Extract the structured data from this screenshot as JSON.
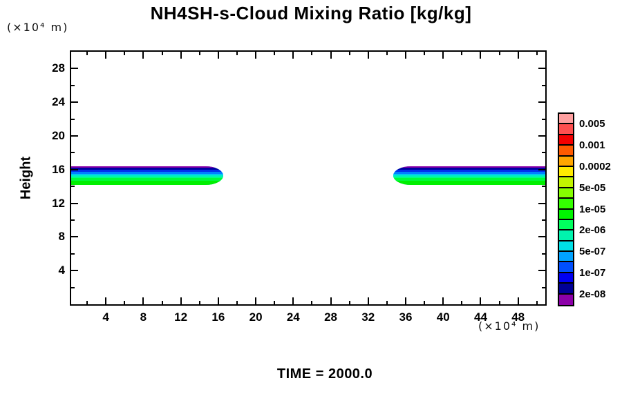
{
  "chart_data": {
    "type": "filled_contour",
    "title": "NH4SH-s-Cloud Mixing Ratio [kg/kg]",
    "ylabel": "Height",
    "y_axis_unit": "(×10⁴ m)",
    "x_axis_unit": "(×10⁴ m)",
    "time_label": "TIME = 2000.0",
    "xlim": [
      0.3,
      50.9
    ],
    "ylim": [
      0,
      30
    ],
    "x_ticks_major": [
      4,
      8,
      12,
      16,
      20,
      24,
      28,
      32,
      36,
      40,
      44,
      48
    ],
    "x_ticks_minor": [
      2,
      6,
      10,
      14,
      18,
      22,
      26,
      30,
      34,
      38,
      42,
      46,
      50
    ],
    "y_ticks_major": [
      4,
      8,
      12,
      16,
      20,
      24,
      28
    ],
    "y_ticks_minor": [
      2,
      6,
      10,
      14,
      18,
      22,
      26,
      30
    ],
    "grid": false,
    "legend_position": "right",
    "colorbar": {
      "labels": [
        "0.005",
        "0.001",
        "0.0002",
        "5e-05",
        "1e-05",
        "2e-06",
        "5e-07",
        "1e-07",
        "2e-08"
      ],
      "colors_top_to_bottom": [
        "#FFA0A0",
        "#FF4F4F",
        "#F30000",
        "#FF5A00",
        "#FFA600",
        "#FFEA00",
        "#C2F400",
        "#86FF00",
        "#34FF00",
        "#00F400",
        "#00FF5E",
        "#00F4AE",
        "#00DFE6",
        "#00A2FF",
        "#004FFF",
        "#0000F2",
        "#000096",
        "#8C00A8"
      ]
    },
    "clouds": [
      {
        "x_start": 0.3,
        "x_end": 16.5,
        "y_bottom": 14.2,
        "y_top": 16.4,
        "tip_side": "right"
      },
      {
        "x_start": 34.7,
        "x_end": 50.9,
        "y_bottom": 14.2,
        "y_top": 16.4,
        "tip_side": "left"
      }
    ],
    "cloud_layers_top_to_bottom": [
      {
        "color": "#8C00A8",
        "px": 2
      },
      {
        "color": "#0000A2",
        "px": 3
      },
      {
        "color": "#0030EE",
        "px": 3
      },
      {
        "color": "#0080FF",
        "px": 3
      },
      {
        "color": "#00C8F0",
        "px": 2
      },
      {
        "color": "#00EEC4",
        "px": 2
      },
      {
        "color": "#00FF86",
        "px": 2
      },
      {
        "color": "#00FC3A",
        "px": 4
      },
      {
        "color": "#00EF00",
        "px": 6
      }
    ]
  }
}
